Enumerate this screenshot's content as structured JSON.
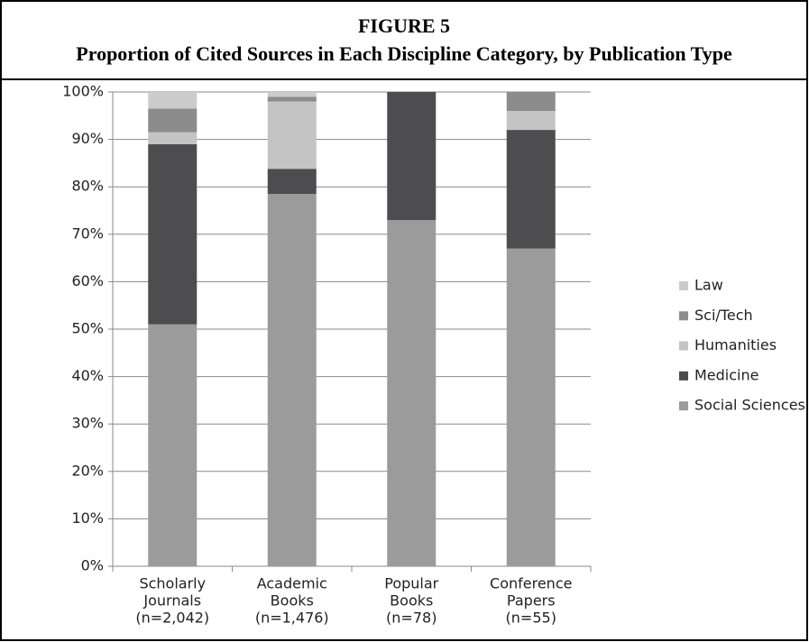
{
  "chart_data": {
    "type": "stacked_bar",
    "title": "FIGURE 5",
    "subtitle": "Proportion of Cited Sources in Each Discipline Category, by Publication Type",
    "categories": [
      [
        "Scholarly",
        "Journals",
        "(n=2,042)"
      ],
      [
        "Academic",
        "Books",
        "(n=1,476)"
      ],
      [
        "Popular",
        "Books",
        "(n=78)"
      ],
      [
        "Conference",
        "Papers",
        "(n=55)"
      ]
    ],
    "series": [
      {
        "name": "Social Sciences",
        "color": "#9b9b9b",
        "values": [
          51,
          78.5,
          73,
          67
        ]
      },
      {
        "name": "Medicine",
        "color": "#4d4d4f",
        "values": [
          38,
          5.3,
          27,
          25
        ]
      },
      {
        "name": "Humanities",
        "color": "#c4c4c4",
        "values": [
          2.5,
          14.2,
          0,
          4
        ]
      },
      {
        "name": "Sci/Tech",
        "color": "#8c8c8c",
        "values": [
          5,
          1,
          0,
          4
        ]
      },
      {
        "name": "Law",
        "color": "#cbcbcb",
        "values": [
          3.5,
          1,
          0,
          0
        ]
      }
    ],
    "ylim": [
      0,
      100
    ],
    "yticks": [
      {
        "value": 0,
        "label": "0%"
      },
      {
        "value": 10,
        "label": "10%"
      },
      {
        "value": 20,
        "label": "20%"
      },
      {
        "value": 30,
        "label": "30%"
      },
      {
        "value": 40,
        "label": "40%"
      },
      {
        "value": 50,
        "label": "50%"
      },
      {
        "value": 60,
        "label": "60%"
      },
      {
        "value": 70,
        "label": "70%"
      },
      {
        "value": 80,
        "label": "80%"
      },
      {
        "value": 90,
        "label": "90%"
      },
      {
        "value": 100,
        "label": "100%"
      }
    ],
    "grid": true,
    "legend": "right"
  }
}
